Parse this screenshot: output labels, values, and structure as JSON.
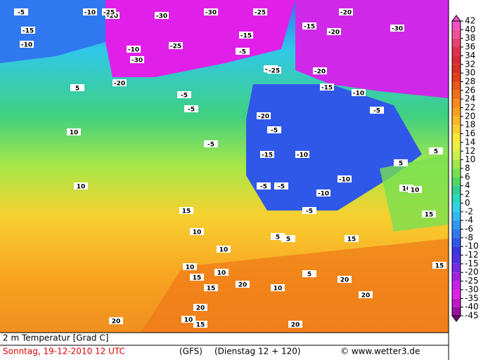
{
  "map": {
    "labels": [
      "-5",
      "-10",
      "-20",
      "-30",
      "-25",
      "-30",
      "-25",
      "-20",
      "-30",
      "-20",
      "-15",
      "-10",
      "-15",
      "-10",
      "-25",
      "-30",
      "-20",
      "-5",
      "-10",
      "-15",
      "-20",
      "-5",
      "-25",
      "-15",
      "-20",
      "-10",
      "-5",
      "-15",
      "-10",
      "-5",
      "-10",
      "-5",
      "-10",
      "-5",
      "-5",
      "-5",
      "-5",
      "5",
      "5",
      "10",
      "10",
      "15",
      "10",
      "10",
      "5",
      "5",
      "10",
      "15",
      "20",
      "20",
      "10",
      "20",
      "15",
      "20",
      "10",
      "15",
      "5",
      "5",
      "10",
      "15",
      "10",
      "10",
      "15",
      "15",
      "20",
      "20"
    ]
  },
  "legend": {
    "ticks": [
      42,
      40,
      38,
      36,
      34,
      32,
      30,
      28,
      26,
      24,
      22,
      20,
      18,
      16,
      14,
      12,
      10,
      8,
      6,
      4,
      2,
      0,
      -2,
      -4,
      -6,
      -8,
      -10,
      -12,
      -15,
      -20,
      -25,
      -30,
      -35,
      -40,
      -45
    ],
    "colors": [
      "#f050c8",
      "#f0509a",
      "#e84070",
      "#e03050",
      "#d82838",
      "#d83020",
      "#e04018",
      "#e85818",
      "#f07018",
      "#f88818",
      "#f8a020",
      "#f8b828",
      "#f8d030",
      "#f8e838",
      "#e8f040",
      "#c8f048",
      "#a0e848",
      "#78e050",
      "#50d860",
      "#30d090",
      "#28d8c0",
      "#30d0e8",
      "#30b8f0",
      "#3098f0",
      "#3078f0",
      "#3058e8",
      "#3838e0",
      "#5030e0",
      "#7828e0",
      "#a020e0",
      "#c820e8",
      "#e020e8",
      "#c018c8",
      "#9810a0",
      "#780880"
    ]
  },
  "footer": {
    "title": "2 m Temperatur [Grad C]",
    "date": "Sonntag, 19-12-2010  12 UTC",
    "model": "(GFS)",
    "run": "(Dienstag 12 + 120)",
    "credit": "© www.wetter3.de"
  }
}
